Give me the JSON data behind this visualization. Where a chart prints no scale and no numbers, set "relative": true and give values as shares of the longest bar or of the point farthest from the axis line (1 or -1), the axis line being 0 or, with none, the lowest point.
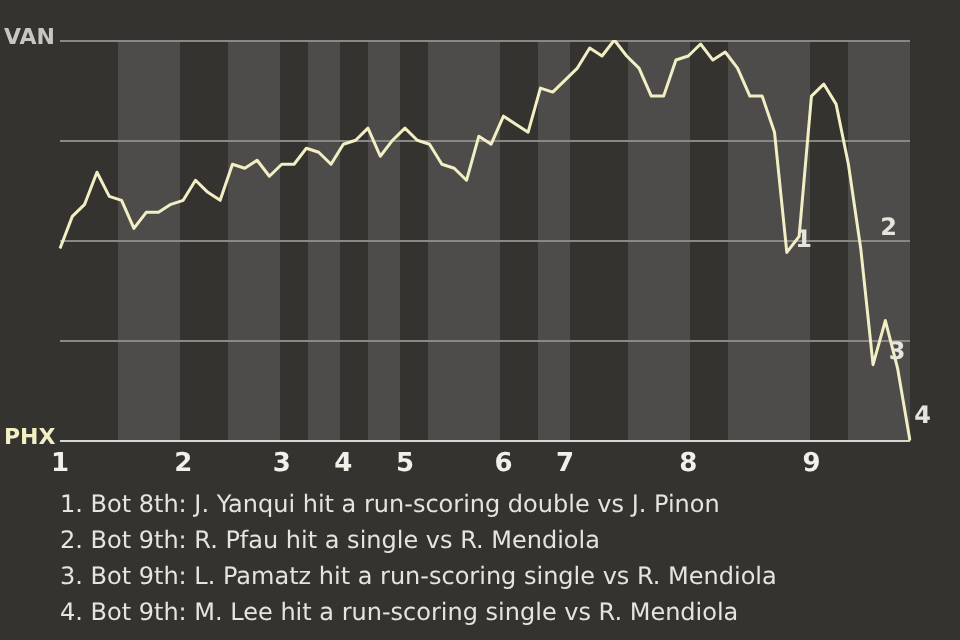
{
  "chart_data": {
    "type": "line",
    "relative": true,
    "categories": [
      "1",
      null,
      null,
      null,
      null,
      null,
      null,
      null,
      null,
      null,
      "2",
      null,
      null,
      null,
      null,
      null,
      null,
      null,
      "3",
      null,
      null,
      null,
      null,
      "4",
      null,
      null,
      null,
      null,
      "5",
      null,
      null,
      null,
      null,
      null,
      null,
      null,
      "6",
      null,
      null,
      null,
      null,
      "7",
      null,
      null,
      null,
      null,
      null,
      null,
      null,
      null,
      null,
      "8",
      null,
      null,
      null,
      null,
      null,
      null,
      null,
      null,
      null,
      "9",
      null,
      null,
      null,
      null,
      null,
      null,
      null,
      null
    ],
    "series": [
      {
        "color": "#f3efc4",
        "values": [
          0.48,
          0.56,
          0.59,
          0.67,
          0.61,
          0.6,
          0.53,
          0.57,
          0.57,
          0.59,
          0.6,
          0.65,
          0.62,
          0.6,
          0.69,
          0.68,
          0.7,
          0.66,
          0.69,
          0.69,
          0.73,
          0.72,
          0.69,
          0.74,
          0.75,
          0.78,
          0.71,
          0.75,
          0.78,
          0.75,
          0.74,
          0.69,
          0.68,
          0.65,
          0.76,
          0.74,
          0.81,
          0.79,
          0.77,
          0.88,
          0.87,
          0.9,
          0.93,
          0.98,
          0.96,
          1,
          0.96,
          0.93,
          0.86,
          0.86,
          0.95,
          0.96,
          0.99,
          0.95,
          0.97,
          0.93,
          0.86,
          0.86,
          0.77,
          0.47,
          0.51,
          0.86,
          0.89,
          0.84,
          0.69,
          0.48,
          0.19,
          0.3,
          0.18,
          0
        ]
      }
    ],
    "grid": "y",
    "legend": false,
    "marker": "none",
    "line_style": "solid",
    "annotations": [
      "1",
      "2",
      "3",
      "4",
      "VAN",
      "PHX",
      "1. Bot 8th: J. Yanqui hit a run-scoring double vs J. Pinon",
      "2. Bot 9th: R. Pfau hit a single vs R. Mendiola",
      "3. Bot 9th: L. Pamatz hit a run-scoring single vs R. Mendiola",
      "4. Bot 9th: M. Lee hit a run-scoring single vs R. Mendiola"
    ]
  }
}
